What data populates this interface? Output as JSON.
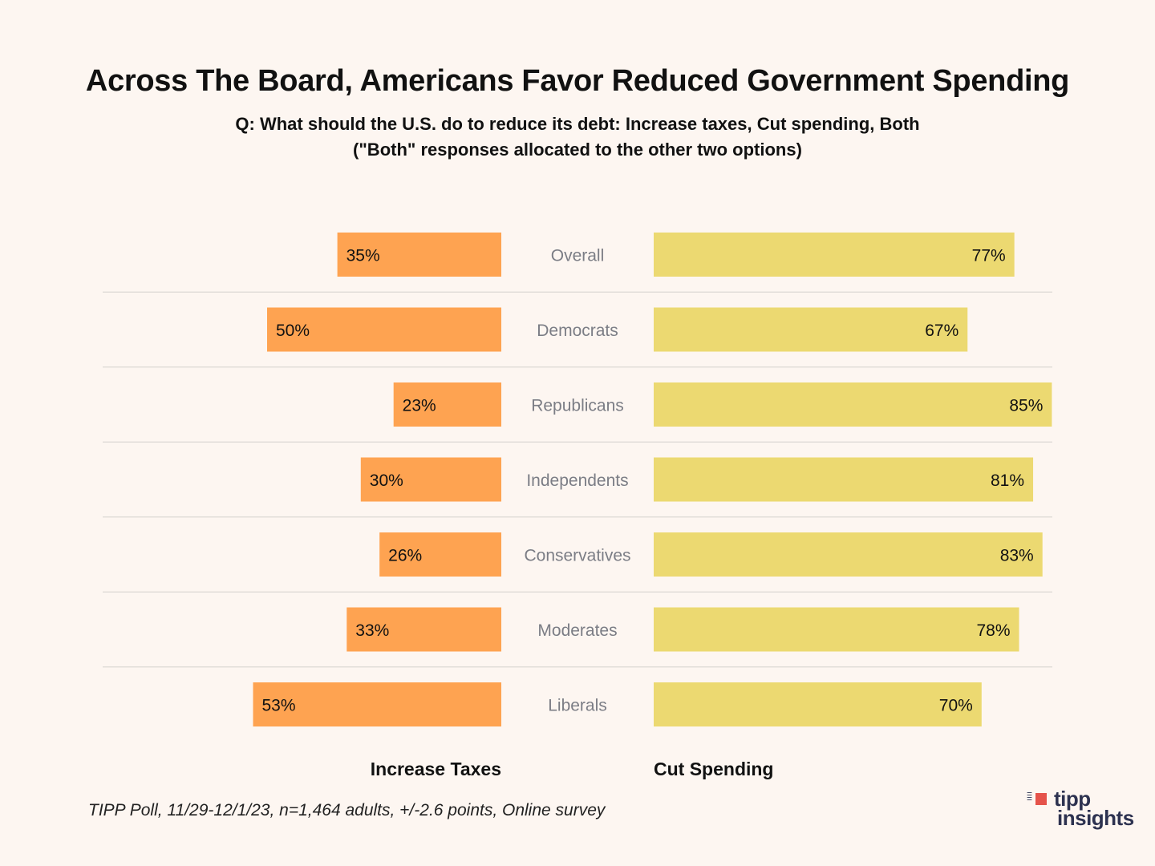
{
  "chart_data": {
    "type": "bar",
    "orientation": "horizontal-diverging",
    "title": "Across The Board, Americans Favor Reduced Government Spending",
    "subtitle": [
      "Q: What should the U.S. do to reduce its debt: Increase taxes, Cut spending, Both",
      "(\"Both\" responses allocated to the other two options)"
    ],
    "categories": [
      "Overall",
      "Democrats",
      "Republicans",
      "Independents",
      "Conservatives",
      "Moderates",
      "Liberals"
    ],
    "series": [
      {
        "name": "Increase Taxes",
        "color": "#fea351",
        "side": "left",
        "values": [
          35,
          50,
          23,
          30,
          26,
          33,
          53
        ]
      },
      {
        "name": "Cut Spending",
        "color": "#ecd971",
        "side": "right",
        "values": [
          77,
          67,
          85,
          81,
          83,
          78,
          70
        ]
      }
    ],
    "value_suffix": "%",
    "legend": [
      "Increase Taxes",
      "Cut Spending"
    ],
    "legend_position": "bottom",
    "grid": false,
    "xlim": [
      0,
      100
    ]
  },
  "source": "TIPP Poll, 11/29-12/1/23, n=1,464 adults, +/-2.6 points, Online survey",
  "logo": {
    "line1": "tipp",
    "line2": "insights"
  }
}
